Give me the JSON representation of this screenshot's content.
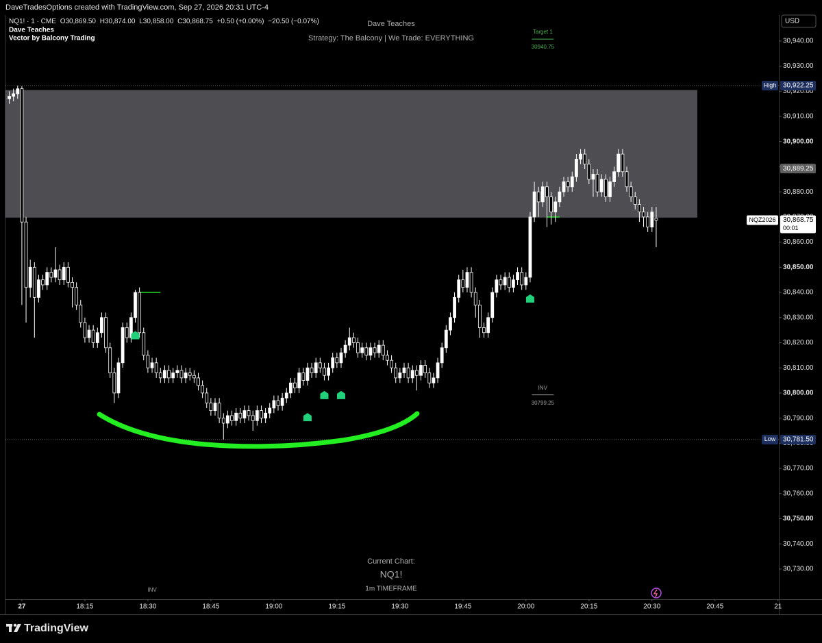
{
  "header": {
    "attribution": "DaveTradesOptions created with TradingView.com, Sep 27, 2026 20:31 UTC-4",
    "symbol": "NQ1! · 1 · CME",
    "ohlc": [
      "O30,869.50",
      "H30,874.00",
      "L30,858.00",
      "C30,868.75",
      "+0.50 (+0.00%)",
      "−20.50 (−0.07%)"
    ],
    "indicators": [
      "Dave Teaches",
      "Vector by Balcony Trading"
    ]
  },
  "watermark": {
    "title": "Dave Teaches",
    "subtitle": "Strategy: The Balcony | We Trade: EVERYTHING",
    "bottom": [
      "Current Chart:",
      "NQ1!",
      "1m TIMEFRAME"
    ]
  },
  "brand": "TradingView",
  "chart_data": {
    "type": "candlestick",
    "currency": "USD",
    "grid": false,
    "up_color": "#ffffff",
    "down_color": "#000000",
    "zone_color": "#4d4d52",
    "x": [
      -3,
      -2,
      -1,
      0,
      1,
      2,
      3,
      4,
      5,
      6,
      7,
      8,
      9,
      10,
      11,
      12,
      13,
      14,
      15,
      16,
      17,
      18,
      19,
      20,
      21,
      22,
      23,
      24,
      25,
      26,
      27,
      28,
      29,
      30,
      31,
      32,
      33,
      34,
      35,
      36,
      37,
      38,
      39,
      40,
      41,
      42,
      43,
      44,
      45,
      46,
      47,
      48,
      49,
      50,
      51,
      52,
      53,
      54,
      55,
      56,
      57,
      58,
      59,
      60,
      61,
      62,
      63,
      64,
      65,
      66,
      67,
      68,
      69,
      70,
      71,
      72,
      73,
      74,
      75,
      76,
      77,
      78,
      79,
      80,
      81,
      82,
      83,
      84,
      85,
      86,
      87,
      88,
      89,
      90,
      91,
      92,
      93,
      94,
      95,
      96,
      97,
      98,
      99,
      100,
      101,
      102,
      103,
      104,
      105,
      106,
      107,
      108,
      109,
      110,
      111,
      112,
      113,
      114,
      115,
      116,
      117,
      118,
      119,
      120,
      121,
      122,
      123,
      124,
      125,
      126,
      127,
      128,
      129,
      130,
      131,
      132,
      133,
      134,
      135,
      136,
      137,
      138,
      139,
      140,
      141,
      142,
      143,
      144,
      145,
      146,
      147,
      148,
      149,
      150,
      151
    ],
    "open": [
      30917,
      30918,
      30919,
      30921,
      30868,
      30842,
      30850,
      30838,
      30845,
      30843,
      30848,
      30846,
      30849,
      30845,
      30850,
      30844,
      30842,
      30835,
      30828,
      30822,
      30825,
      30820,
      30824,
      30830,
      30818,
      30808,
      30800,
      30812,
      30826,
      30822,
      30830,
      30840,
      30824,
      30815,
      30810,
      30812,
      30808,
      30806,
      30809,
      30806,
      30808,
      30809,
      30806,
      30808,
      30807,
      30806,
      30803,
      30800,
      30796,
      30793,
      30796,
      30790,
      30788,
      30791,
      30789,
      30792,
      30790,
      30793,
      30791,
      30789,
      30793,
      30790,
      30792,
      30794,
      30797,
      30795,
      30798,
      30800,
      30804,
      30802,
      30808,
      30805,
      30810,
      30808,
      30812,
      30810,
      30807,
      30810,
      30814,
      30812,
      30816,
      30819,
      30822,
      30820,
      30816,
      30818,
      30815,
      30818,
      30816,
      30819,
      30815,
      30813,
      30810,
      30806,
      30808,
      30810,
      30806,
      30809,
      30807,
      30811,
      30808,
      30804,
      30806,
      30812,
      30818,
      30825,
      30830,
      30838,
      30845,
      30842,
      30848,
      30840,
      30835,
      30826,
      30824,
      30830,
      30840,
      30845,
      30843,
      30846,
      30842,
      30845,
      30848,
      30843,
      30846,
      30870,
      30880,
      30876,
      30882,
      30878,
      30872,
      30876,
      30880,
      30884,
      30882,
      30886,
      30893,
      30895,
      30891,
      30885,
      30887,
      30880,
      30885,
      30878,
      30884,
      30888,
      30895,
      30888,
      30882,
      30878,
      30875,
      30872,
      30870,
      30866,
      30869.5
    ],
    "high": [
      30920,
      30921,
      30922.25,
      30922,
      30870,
      30853,
      30852,
      30847,
      30847,
      30850,
      30850,
      30858,
      30851,
      30852,
      30852,
      30846,
      30844,
      30837,
      30830,
      30827,
      30827,
      30826,
      30832,
      30832,
      30820,
      30810,
      30814,
      30828,
      30828,
      30832,
      30841,
      30842,
      30826,
      30817,
      30814,
      30814,
      30810,
      30811,
      30811,
      30810,
      30811,
      30811,
      30810,
      30810,
      30809,
      30808,
      30805,
      30802,
      30798,
      30798,
      30798,
      30792,
      30793,
      30793,
      30794,
      30794,
      30795,
      30795,
      30793,
      30795,
      30795,
      30794,
      30796,
      30799,
      30799,
      30800,
      30802,
      30806,
      30806,
      30810,
      30810,
      30812,
      30812,
      30814,
      30814,
      30812,
      30812,
      30816,
      30816,
      30818,
      30821,
      30826,
      30824,
      30822,
      30820,
      30820,
      30820,
      30820,
      30821,
      30821,
      30817,
      30815,
      30812,
      30810,
      30812,
      30812,
      30811,
      30811,
      30813,
      30813,
      30810,
      30808,
      30814,
      30820,
      30827,
      30832,
      30840,
      30847,
      30849,
      30850,
      30850,
      30842,
      30837,
      30828,
      30832,
      30842,
      30847,
      30847,
      30848,
      30848,
      30847,
      30850,
      30850,
      30848,
      30872,
      30884,
      30882,
      30884,
      30884,
      30880,
      30878,
      30882,
      30886,
      30886,
      30888,
      30895,
      30897,
      30897,
      30893,
      30889,
      30889,
      30887,
      30887,
      30886,
      30890,
      30897,
      30897,
      30890,
      30884,
      30880,
      30877,
      30874,
      30872,
      30874,
      30874
    ],
    "low": [
      30915,
      30916,
      30917,
      30835,
      30828,
      30838,
      30822,
      30836,
      30841,
      30841,
      30844,
      30844,
      30843,
      30843,
      30842,
      30834,
      30833,
      30826,
      30820,
      30820,
      30818,
      30818,
      30822,
      30816,
      30806,
      30796,
      30798,
      30810,
      30820,
      30820,
      30828,
      30822,
      30813,
      30808,
      30808,
      30806,
      30804,
      30804,
      30804,
      30804,
      30806,
      30804,
      30804,
      30805,
      30804,
      30801,
      30798,
      30794,
      30791,
      30791,
      30788,
      30781.5,
      30786,
      30787,
      30787,
      30788,
      30788,
      30789,
      30785,
      30787,
      30788,
      30788,
      30790,
      30792,
      30793,
      30793,
      30796,
      30798,
      30800,
      30800,
      30803,
      30803,
      30806,
      30806,
      30808,
      30805,
      30805,
      30808,
      30810,
      30810,
      30814,
      30817,
      30818,
      30814,
      30814,
      30813,
      30813,
      30814,
      30814,
      30813,
      30811,
      30808,
      30804,
      30804,
      30806,
      30804,
      30804,
      30801,
      30805,
      30806,
      30802,
      30802,
      30804,
      30810,
      30816,
      30823,
      30828,
      30836,
      30840,
      30840,
      30838,
      30830,
      30822,
      30822,
      30822,
      30828,
      30838,
      30841,
      30841,
      30840,
      30840,
      30843,
      30841,
      30841,
      30844,
      30868,
      30870,
      30874,
      30866,
      30867,
      30868,
      30874,
      30878,
      30880,
      30880,
      30884,
      30891,
      30889,
      30883,
      30878,
      30878,
      30878,
      30876,
      30876,
      30882,
      30886,
      30886,
      30880,
      30876,
      30873,
      30868,
      30866,
      30864,
      30864,
      30858
    ],
    "close": [
      30918,
      30919,
      30921,
      30868,
      30842,
      30850,
      30838,
      30845,
      30843,
      30848,
      30846,
      30849,
      30845,
      30850,
      30844,
      30842,
      30835,
      30828,
      30822,
      30825,
      30820,
      30824,
      30830,
      30818,
      30808,
      30800,
      30812,
      30826,
      30822,
      30830,
      30840,
      30824,
      30815,
      30810,
      30812,
      30808,
      30806,
      30809,
      30806,
      30808,
      30809,
      30806,
      30808,
      30807,
      30806,
      30803,
      30800,
      30796,
      30793,
      30796,
      30790,
      30788,
      30791,
      30789,
      30792,
      30790,
      30793,
      30791,
      30789,
      30793,
      30790,
      30792,
      30794,
      30797,
      30795,
      30798,
      30800,
      30804,
      30802,
      30808,
      30805,
      30810,
      30808,
      30812,
      30810,
      30807,
      30810,
      30814,
      30812,
      30816,
      30819,
      30822,
      30820,
      30816,
      30818,
      30815,
      30818,
      30816,
      30819,
      30815,
      30813,
      30810,
      30806,
      30808,
      30810,
      30806,
      30809,
      30807,
      30811,
      30808,
      30804,
      30806,
      30812,
      30818,
      30825,
      30830,
      30838,
      30845,
      30842,
      30848,
      30840,
      30835,
      30826,
      30824,
      30830,
      30840,
      30845,
      30843,
      30846,
      30842,
      30845,
      30848,
      30843,
      30846,
      30870,
      30880,
      30876,
      30882,
      30878,
      30872,
      30876,
      30880,
      30884,
      30882,
      30886,
      30893,
      30895,
      30891,
      30885,
      30887,
      30880,
      30885,
      30878,
      30884,
      30888,
      30895,
      30888,
      30882,
      30878,
      30875,
      30872,
      30870,
      30866,
      30872,
      30868.75
    ],
    "xlim": [
      -3.9,
      180.2
    ],
    "xticks": [
      {
        "value": 0,
        "label": "27"
      },
      {
        "value": 15,
        "label": "18:15"
      },
      {
        "value": 30,
        "label": "18:30"
      },
      {
        "value": 45,
        "label": "18:45"
      },
      {
        "value": 60,
        "label": "19:00"
      },
      {
        "value": 75,
        "label": "19:15"
      },
      {
        "value": 90,
        "label": "19:30"
      },
      {
        "value": 105,
        "label": "19:45"
      },
      {
        "value": 120,
        "label": "20:00"
      },
      {
        "value": 135,
        "label": "20:15"
      },
      {
        "value": 150,
        "label": "20:30"
      },
      {
        "value": 165,
        "label": "20:45"
      },
      {
        "value": 180,
        "label": "21"
      }
    ],
    "ylim": [
      30718,
      30950.3
    ],
    "yticks": [
      {
        "value": 30730,
        "label": "30,730.00"
      },
      {
        "value": 30740,
        "label": "30,740.00"
      },
      {
        "value": 30750,
        "label": "30,750.00"
      },
      {
        "value": 30760,
        "label": "30,760.00"
      },
      {
        "value": 30770,
        "label": "30,770.00"
      },
      {
        "value": 30780,
        "label": "30,780.00"
      },
      {
        "value": 30790,
        "label": "30,790.00"
      },
      {
        "value": 30800,
        "label": "30,800.00"
      },
      {
        "value": 30810,
        "label": "30,810.00"
      },
      {
        "value": 30820,
        "label": "30,820.00"
      },
      {
        "value": 30830,
        "label": "30,830.00"
      },
      {
        "value": 30840,
        "label": "30,840.00"
      },
      {
        "value": 30850,
        "label": "30,850.00"
      },
      {
        "value": 30860,
        "label": "30,860.00"
      },
      {
        "value": 30870,
        "label": "30,870.00"
      },
      {
        "value": 30880,
        "label": "30,880.00"
      },
      {
        "value": 30890,
        "label": "30,890.00"
      },
      {
        "value": 30900,
        "label": "30,900.00"
      },
      {
        "value": 30910,
        "label": "30,910.00"
      },
      {
        "value": 30920,
        "label": "30,920.00"
      },
      {
        "value": 30930,
        "label": "30,930.00"
      },
      {
        "value": 30940,
        "label": "30,940.00"
      }
    ],
    "zone": [
      30869.75,
      30920.5
    ],
    "levels": [
      {
        "label": "High",
        "value": 30922.25,
        "value_label": "30,922.25"
      },
      {
        "label": "Low",
        "value": 30781.5,
        "value_label": "30,781.50"
      }
    ],
    "price_tags": [
      {
        "value": 30889.25,
        "label": "30,889.25"
      }
    ],
    "last_price": {
      "name": "NQZ2026",
      "value": 30868.75,
      "label": "30,868.75",
      "countdown": "00:01"
    },
    "annotations": [
      {
        "text": "Target 1",
        "x": 124,
        "value": 30940.75,
        "value_label": "30940.75",
        "color": "#4caf50"
      },
      {
        "text": "INV",
        "x": 124,
        "value": 30799.25,
        "value_label": "30799.25",
        "color": "#9e9e9e"
      }
    ],
    "bottom_labels": [
      {
        "text": "INV",
        "x": 31
      }
    ],
    "signal_lines": [
      {
        "value": 30840,
        "x": [
          28,
          33
        ]
      },
      {
        "value": 30870,
        "x": [
          125,
          128
        ]
      }
    ],
    "buy_signals": {
      "x": [
        27,
        68,
        72,
        76,
        121
      ],
      "values": [
        30823,
        30790.4,
        30799.2,
        30799.2,
        30837.6
      ],
      "color": "#21d07a"
    }
  }
}
